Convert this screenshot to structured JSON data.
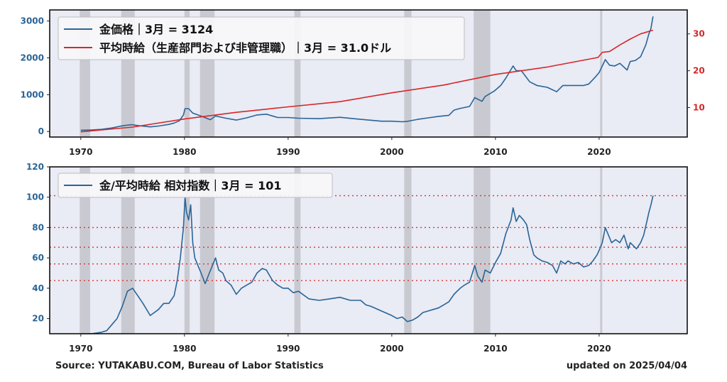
{
  "chart_data": [
    {
      "type": "line",
      "legend": {
        "placement": "top-left",
        "entries": [
          "金価格｜3月 = 3124",
          "平均時給（生産部門および非管理職）｜3月 = 31.0ドル"
        ]
      },
      "xticks": [
        "1970",
        "1980",
        "1990",
        "2000",
        "2010",
        "2020"
      ],
      "xlim": [
        1967.0,
        2028.5
      ],
      "ylim_left": [
        -150,
        3300
      ],
      "yticks_left": [
        "0",
        "1000",
        "2000",
        "3000"
      ],
      "ylim_right": [
        2.0,
        36.5
      ],
      "yticks_right": [
        "10",
        "20",
        "30"
      ],
      "recessions": [
        [
          1969.9,
          1970.9
        ],
        [
          1973.9,
          1975.2
        ],
        [
          1980.0,
          1980.5
        ],
        [
          1981.5,
          1982.9
        ],
        [
          1990.6,
          1991.2
        ],
        [
          2001.2,
          2001.9
        ],
        [
          2007.9,
          2009.5
        ],
        [
          2020.1,
          2020.3
        ]
      ],
      "series": [
        {
          "name": "金価格｜3月 = 3124",
          "axis": "left",
          "color": "#2a6496",
          "x": [
            1970.0,
            1971.0,
            1972.0,
            1973.0,
            1974.0,
            1974.9,
            1975.5,
            1976.7,
            1977.5,
            1978.5,
            1979.0,
            1979.5,
            1979.9,
            1980.05,
            1980.4,
            1980.8,
            1981.5,
            1982.5,
            1983.0,
            1984.0,
            1985.0,
            1986.0,
            1987.0,
            1987.9,
            1989.0,
            1990.0,
            1991.0,
            1993.0,
            1995.0,
            1997.0,
            1999.0,
            2000.0,
            2001.0,
            2001.5,
            2002.5,
            2003.5,
            2004.5,
            2005.5,
            2006.0,
            2006.5,
            2007.5,
            2008.0,
            2008.7,
            2009.0,
            2009.9,
            2010.5,
            2011.0,
            2011.7,
            2012.0,
            2012.5,
            2013.3,
            2014.0,
            2015.0,
            2015.9,
            2016.5,
            2017.5,
            2018.5,
            2019.0,
            2019.7,
            2020.0,
            2020.6,
            2021.0,
            2021.5,
            2022.0,
            2022.7,
            2023.0,
            2023.5,
            2024.0,
            2024.5,
            2024.8,
            2025.0,
            2025.2
          ],
          "values": [
            35,
            40,
            58,
            97,
            154,
            185,
            162,
            125,
            148,
            193,
            230,
            290,
            450,
            620,
            620,
            500,
            430,
            320,
            420,
            360,
            310,
            370,
            450,
            470,
            380,
            380,
            360,
            350,
            385,
            330,
            280,
            280,
            265,
            275,
            330,
            370,
            410,
            440,
            580,
            620,
            680,
            920,
            820,
            950,
            1100,
            1250,
            1450,
            1780,
            1650,
            1650,
            1350,
            1250,
            1200,
            1080,
            1250,
            1250,
            1250,
            1290,
            1500,
            1600,
            1950,
            1800,
            1780,
            1850,
            1670,
            1900,
            1930,
            2030,
            2350,
            2650,
            2800,
            3124
          ]
        },
        {
          "name": "平均時給（生産部門および非管理職）｜3月 = 31.0ドル",
          "axis": "right",
          "color": "#d62728",
          "x": [
            1970,
            1975,
            1980,
            1985,
            1990,
            1995,
            2000,
            2005,
            2010,
            2015,
            2019.9,
            2020.3,
            2021,
            2022,
            2023,
            2024,
            2025.2
          ],
          "values": [
            3.4,
            4.7,
            6.9,
            8.7,
            10.2,
            11.6,
            14.0,
            16.1,
            19.0,
            21.0,
            23.6,
            25.0,
            25.2,
            27.0,
            28.6,
            30.0,
            31.0
          ]
        }
      ]
    },
    {
      "type": "line",
      "legend": {
        "placement": "top-left",
        "entries": [
          "金/平均時給 相対指数｜3月 = 101"
        ]
      },
      "xticks": [
        "1970",
        "1980",
        "1990",
        "2000",
        "2010",
        "2020"
      ],
      "xlim": [
        1967.0,
        2028.5
      ],
      "ylim": [
        10,
        120
      ],
      "yticks": [
        "20",
        "40",
        "60",
        "80",
        "100",
        "120"
      ],
      "reference_lines": [
        101,
        80,
        67,
        56,
        45
      ],
      "recessions": [
        [
          1969.9,
          1970.9
        ],
        [
          1973.9,
          1975.2
        ],
        [
          1980.0,
          1980.5
        ],
        [
          1981.5,
          1982.9
        ],
        [
          1990.6,
          1991.2
        ],
        [
          2001.2,
          2001.9
        ],
        [
          2007.9,
          2009.5
        ],
        [
          2020.1,
          2020.3
        ]
      ],
      "series": [
        {
          "name": "金/平均時給 相対指数｜3月 = 101",
          "color": "#2a6496",
          "x": [
            1970.0,
            1971.0,
            1972.0,
            1972.5,
            1973.0,
            1973.5,
            1974.0,
            1974.5,
            1975.0,
            1975.5,
            1976.0,
            1976.7,
            1977.5,
            1978.0,
            1978.5,
            1979.0,
            1979.3,
            1979.6,
            1979.9,
            1980.05,
            1980.2,
            1980.4,
            1980.6,
            1980.8,
            1981.0,
            1981.3,
            1981.6,
            1982.0,
            1982.4,
            1982.7,
            1983.0,
            1983.3,
            1983.7,
            1984.0,
            1984.5,
            1985.0,
            1985.5,
            1986.0,
            1986.5,
            1987.0,
            1987.5,
            1987.9,
            1988.5,
            1989.0,
            1989.5,
            1990.0,
            1990.5,
            1991.0,
            1992.0,
            1993.0,
            1994.0,
            1995.0,
            1996.0,
            1997.0,
            1997.5,
            1998.0,
            1999.0,
            2000.0,
            2000.5,
            2001.0,
            2001.5,
            2002.0,
            2002.5,
            2003.0,
            2003.5,
            2004.0,
            2004.5,
            2005.0,
            2005.5,
            2006.0,
            2006.3,
            2006.6,
            2007.0,
            2007.5,
            2008.0,
            2008.3,
            2008.7,
            2009.0,
            2009.5,
            2010.0,
            2010.5,
            2011.0,
            2011.5,
            2011.7,
            2012.0,
            2012.3,
            2012.7,
            2013.0,
            2013.3,
            2013.7,
            2014.0,
            2014.5,
            2015.0,
            2015.5,
            2015.9,
            2016.3,
            2016.7,
            2017.0,
            2017.5,
            2018.0,
            2018.5,
            2019.0,
            2019.4,
            2019.8,
            2020.0,
            2020.3,
            2020.6,
            2020.9,
            2021.2,
            2021.6,
            2022.0,
            2022.4,
            2022.8,
            2023.0,
            2023.3,
            2023.6,
            2024.0,
            2024.3,
            2024.6,
            2024.8,
            2025.0,
            2025.2
          ],
          "values": [
            10,
            10,
            11,
            12,
            16,
            20,
            28,
            38,
            40,
            35,
            30,
            22,
            26,
            30,
            30,
            35,
            45,
            60,
            80,
            100,
            90,
            85,
            95,
            70,
            60,
            55,
            50,
            43,
            50,
            55,
            60,
            52,
            50,
            45,
            42,
            36,
            40,
            42,
            44,
            50,
            53,
            52,
            45,
            42,
            40,
            40,
            37,
            38,
            33,
            32,
            33,
            34,
            32,
            32,
            29,
            28,
            25,
            22,
            20,
            21,
            18,
            19,
            21,
            24,
            25,
            26,
            27,
            29,
            31,
            36,
            38,
            40,
            42,
            44,
            55,
            48,
            44,
            52,
            50,
            57,
            63,
            76,
            85,
            93,
            84,
            88,
            85,
            82,
            72,
            62,
            60,
            58,
            57,
            55,
            50,
            58,
            56,
            58,
            56,
            57,
            54,
            55,
            58,
            62,
            65,
            70,
            80,
            75,
            70,
            72,
            70,
            75,
            66,
            70,
            68,
            66,
            70,
            75,
            84,
            90,
            95,
            101
          ]
        }
      ]
    }
  ],
  "footer": {
    "source": "Source: YUTAKABU.COM, Bureau of Labor Statistics",
    "updated": "updated on 2025/04/04"
  }
}
